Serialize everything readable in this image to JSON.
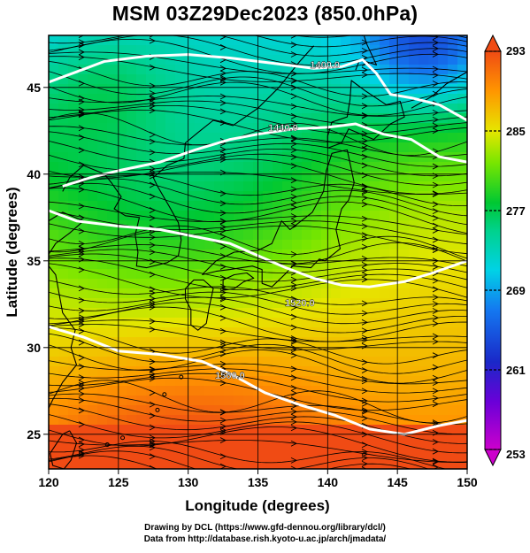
{
  "title": "MSM 03Z29Dec2023 (850.0hPa)",
  "map": {
    "lon_range": [
      120,
      150
    ],
    "lat_range": [
      23,
      48
    ],
    "lon_ticks": [
      120,
      125,
      130,
      135,
      140,
      145,
      150
    ],
    "lat_ticks": [
      25,
      30,
      35,
      40,
      45
    ],
    "xlabel": "Longitude (degrees)",
    "ylabel": "Latitude  (degrees)",
    "grid": true
  },
  "colorbar": {
    "min": 253,
    "max": 293,
    "tick_labels": [
      "293",
      "285",
      "277",
      "269",
      "261",
      "253"
    ],
    "tick_values": [
      293,
      285,
      277,
      269,
      261,
      253
    ]
  },
  "contours": [
    {
      "label": "1400.0",
      "lon": 139.8,
      "lat": 46.1
    },
    {
      "label": "1440.0",
      "lon": 136.8,
      "lat": 42.5
    },
    {
      "label": "1520.0",
      "lon": 138.0,
      "lat": 32.4
    },
    {
      "label": "1560.0",
      "lon": 133.0,
      "lat": 28.2
    }
  ],
  "credits": {
    "line1": "Drawing by DCL (https://www.gfd-dennou.org/library/dcl/)",
    "line2": "Data from http://database.rish.kyoto-u.ac.jp/arch/jmadata/"
  },
  "colors": {
    "ramp": [
      "#cc00cc",
      "#1a28c8",
      "#00b4e6",
      "#00d2a0",
      "#00c832",
      "#a0e600",
      "#f0dc00",
      "#ff9600",
      "#f04b14"
    ],
    "contour": "#ffffff",
    "coast": "#000000"
  }
}
